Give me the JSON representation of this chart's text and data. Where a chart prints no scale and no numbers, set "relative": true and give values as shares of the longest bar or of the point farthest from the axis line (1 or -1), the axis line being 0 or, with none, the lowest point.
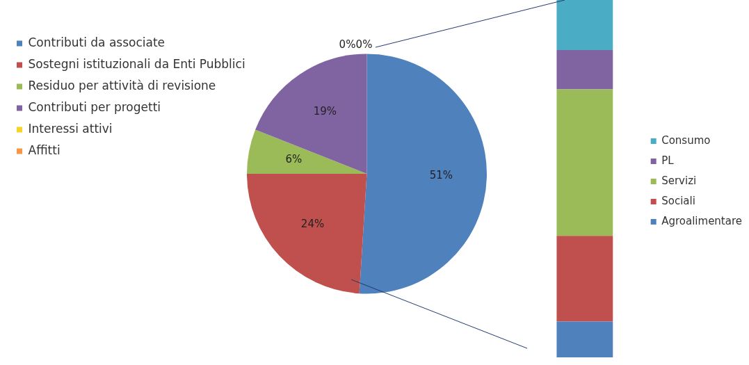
{
  "chart_data": [
    {
      "type": "pie",
      "categories": [
        "Contributi da associate",
        "Sostegni istituzionali da Enti Pubblici",
        "Residuo per attività di revisione",
        "Contributi per progetti",
        "Interessi attivi",
        "Affitti"
      ],
      "values": [
        51,
        24,
        6,
        19,
        0,
        0
      ],
      "colors": [
        "#4f81bd",
        "#c0504d",
        "#9bbb59",
        "#8064a2",
        "#f5d327",
        "#f79646"
      ],
      "value_labels": [
        "51%",
        "24%",
        "6%",
        "19%",
        "0%",
        "0%"
      ],
      "legend": "top left"
    },
    {
      "type": "bar",
      "stacked": true,
      "relative": true,
      "categories": [
        null
      ],
      "series": [
        {
          "name": "Agroalimentare",
          "color": "#4f81bd",
          "values": [
            0.1
          ]
        },
        {
          "name": "Sociali",
          "color": "#c0504d",
          "values": [
            0.24
          ]
        },
        {
          "name": "Servizi",
          "color": "#9bbb59",
          "values": [
            0.41
          ]
        },
        {
          "name": "PL",
          "color": "#8064a2",
          "values": [
            0.11
          ]
        },
        {
          "name": "Consumo",
          "color": "#4bacc6",
          "values": [
            0.14
          ]
        }
      ],
      "legend": "right"
    }
  ]
}
